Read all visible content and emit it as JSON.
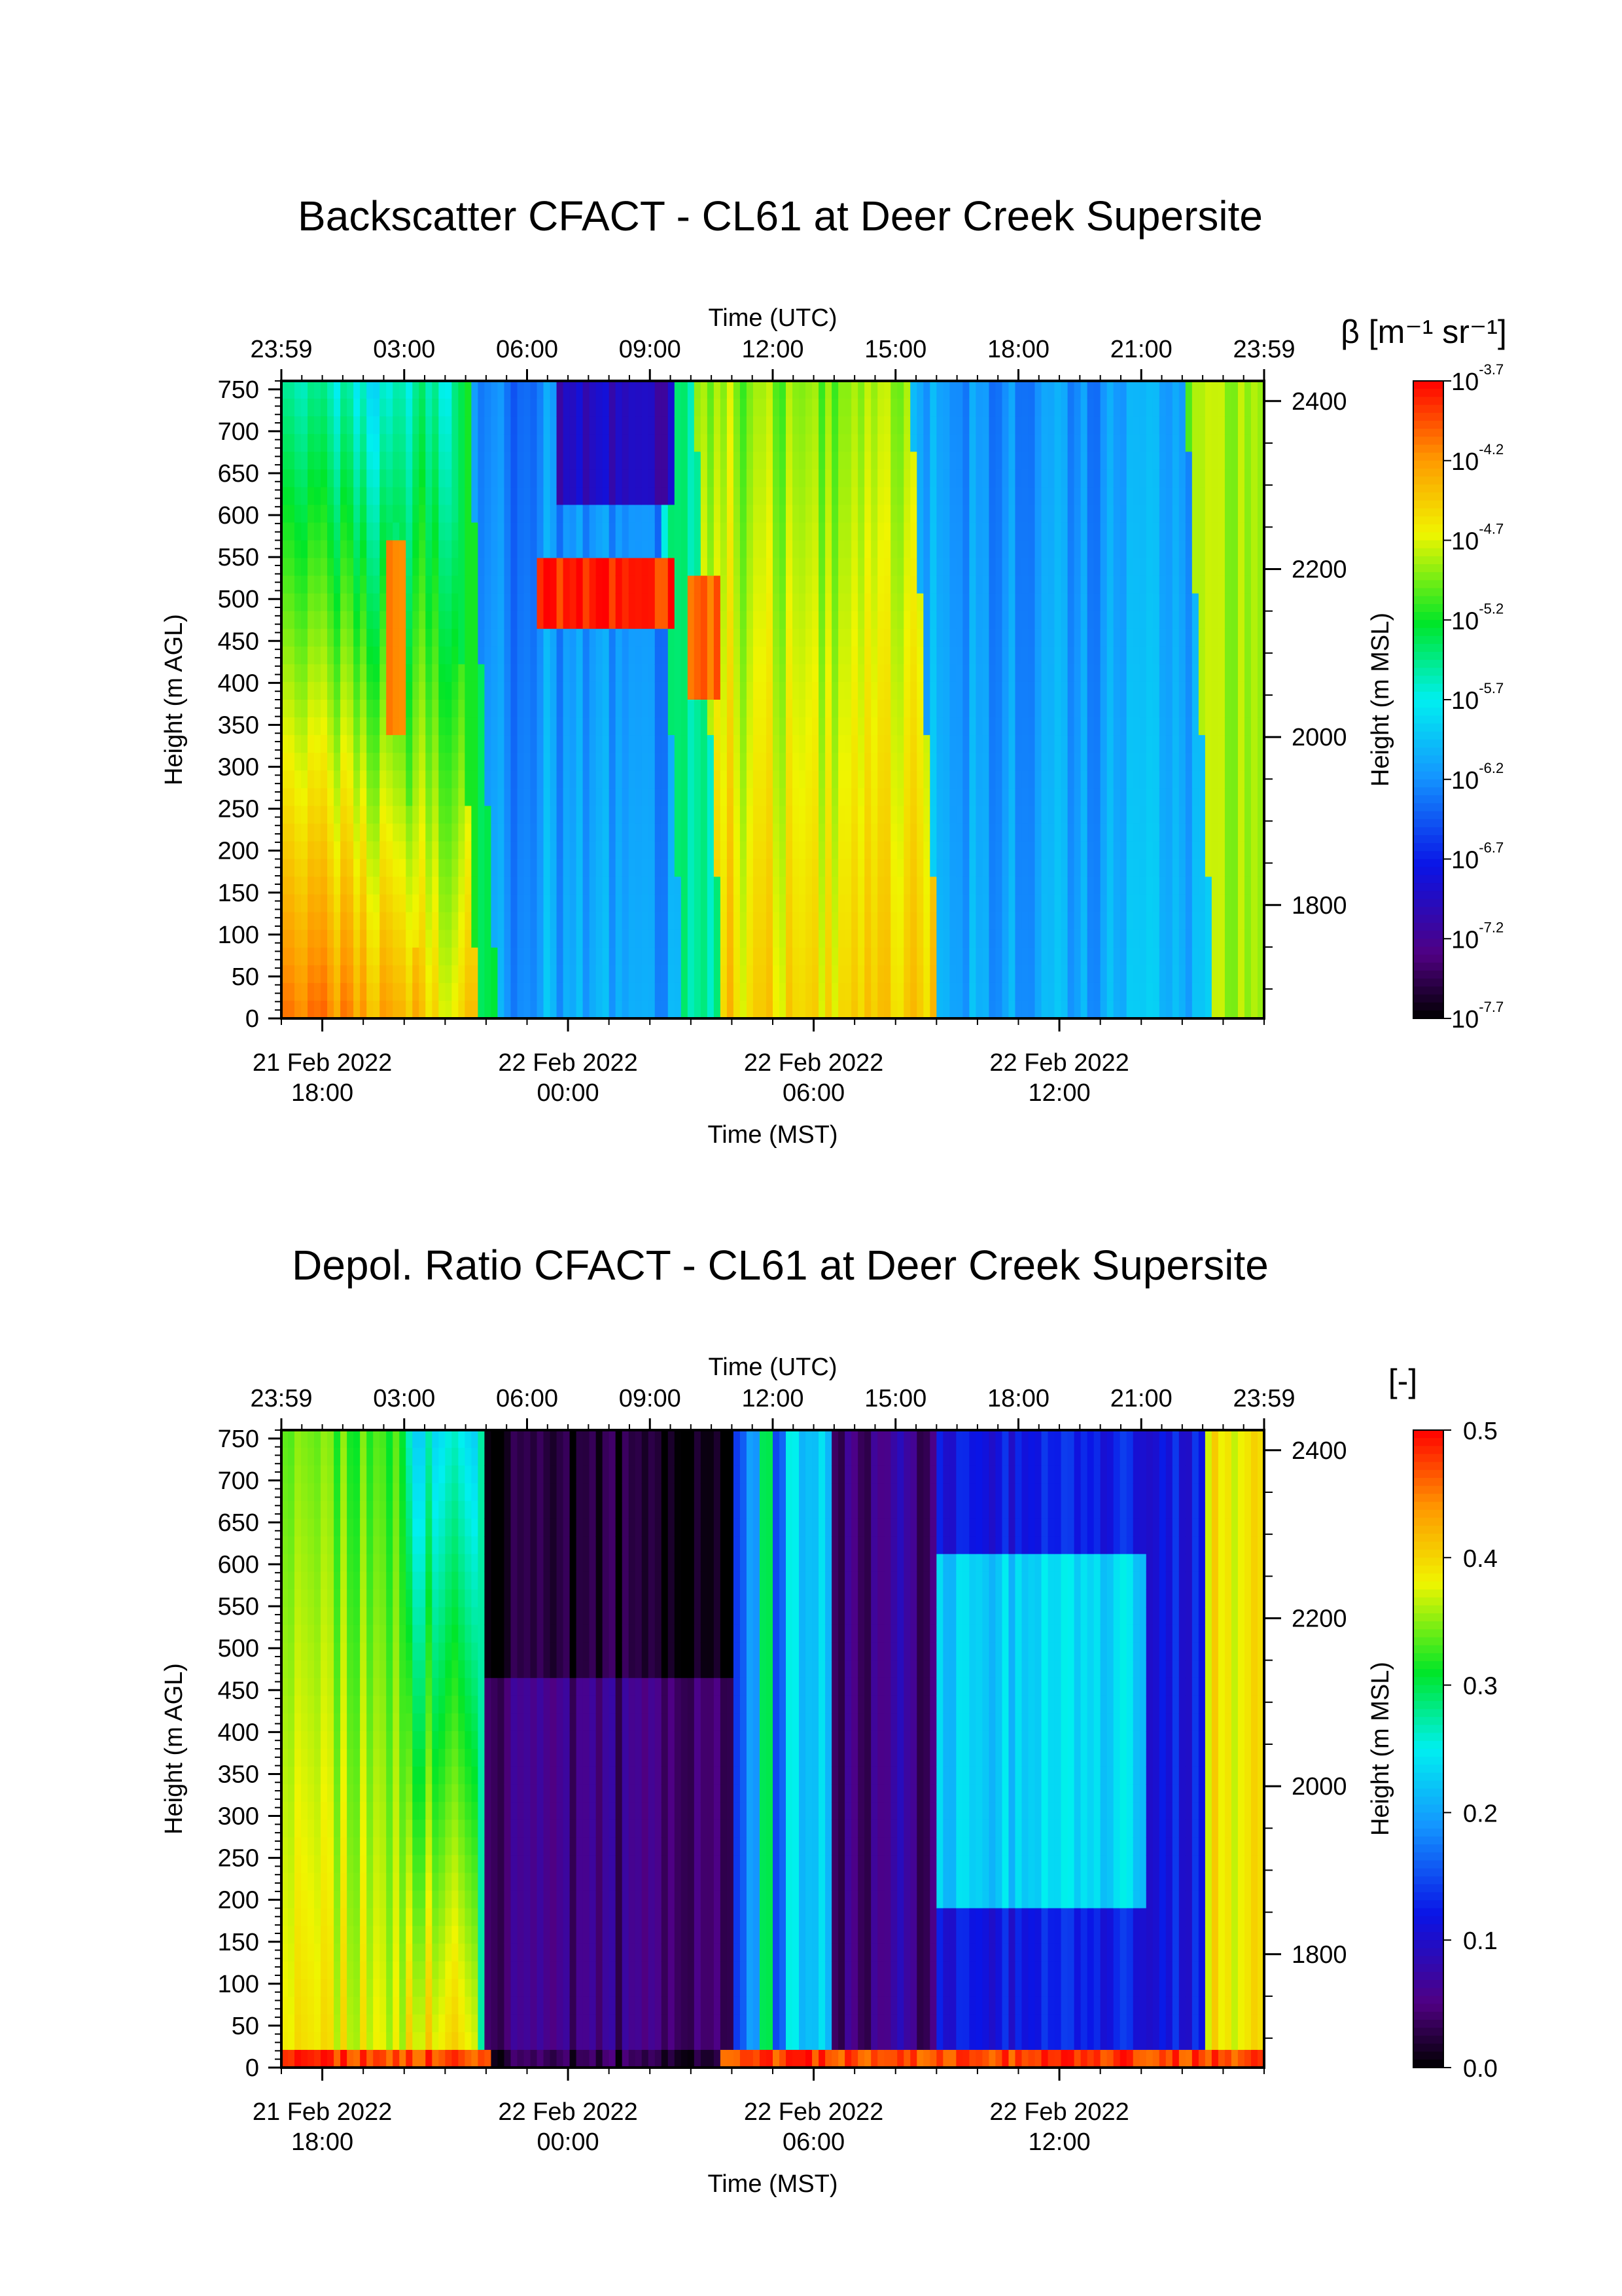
{
  "panels": [
    {
      "title": "Backscatter CFACT - CL61 at Deer Creek Supersite",
      "colorbar": {
        "title": "β [m⁻¹ sr⁻¹]",
        "scale": "log10",
        "vmin": -7.7,
        "vmax": -3.7,
        "tick_base": "10",
        "tick_exponents": [
          "-3.7",
          "-4.2",
          "-4.7",
          "-5.2",
          "-5.7",
          "-6.2",
          "-6.7",
          "-7.2",
          "-7.7"
        ]
      }
    },
    {
      "title": "Depol. Ratio CFACT - CL61 at Deer Creek Supersite",
      "colorbar": {
        "title": "[-]",
        "scale": "linear",
        "vmin": 0.0,
        "vmax": 0.5,
        "ticks": [
          "0.5",
          "0.4",
          "0.3",
          "0.2",
          "0.1",
          "0.0"
        ]
      }
    }
  ],
  "axes": {
    "top_xlabel": "Time (UTC)",
    "top_ticks": [
      "23:59",
      "03:00",
      "06:00",
      "09:00",
      "12:00",
      "15:00",
      "18:00",
      "21:00",
      "23:59"
    ],
    "bottom_xlabel": "Time (MST)",
    "bottom_ticks": [
      {
        "date": "21 Feb 2022",
        "time": "18:00"
      },
      {
        "date": "22 Feb 2022",
        "time": "00:00"
      },
      {
        "date": "22 Feb 2022",
        "time": "06:00"
      },
      {
        "date": "22 Feb 2022",
        "time": "12:00"
      }
    ],
    "left_ylabel": "Height (m AGL)",
    "left_ticks": [
      "750",
      "700",
      "650",
      "600",
      "550",
      "500",
      "450",
      "400",
      "350",
      "300",
      "250",
      "200",
      "150",
      "100",
      "50",
      "0"
    ],
    "right_ylabel": "Height (m MSL)",
    "right_ticks": [
      "2400",
      "2200",
      "2000",
      "1800"
    ]
  },
  "chart_data": [
    {
      "type": "heatmap",
      "title": "Backscatter CFACT - CL61 at Deer Creek Supersite",
      "variable": "β [m⁻¹ sr⁻¹]",
      "x_axis": "Time (UTC)",
      "x_range": [
        "23:59",
        "23:59"
      ],
      "y_axis": "Height (m AGL)",
      "y_range": [
        0,
        760
      ],
      "y2_axis": "Height (m MSL)",
      "y2_range": [
        1665,
        2424
      ],
      "color_scale": "log10",
      "color_range": [
        -7.7,
        -3.7
      ],
      "colormap": "rainbow (black-purple-blue-cyan-green-yellow-orange-red)"
    },
    {
      "type": "heatmap",
      "title": "Depol. Ratio CFACT - CL61 at Deer Creek Supersite",
      "variable": "[-]",
      "x_axis": "Time (UTC)",
      "x_range": [
        "23:59",
        "23:59"
      ],
      "y_axis": "Height (m AGL)",
      "y_range": [
        0,
        760
      ],
      "y2_axis": "Height (m MSL)",
      "y2_range": [
        1665,
        2424
      ],
      "color_scale": "linear",
      "color_range": [
        0.0,
        0.5
      ],
      "colormap": "rainbow (black-purple-blue-cyan-green-yellow-orange-red)"
    }
  ]
}
